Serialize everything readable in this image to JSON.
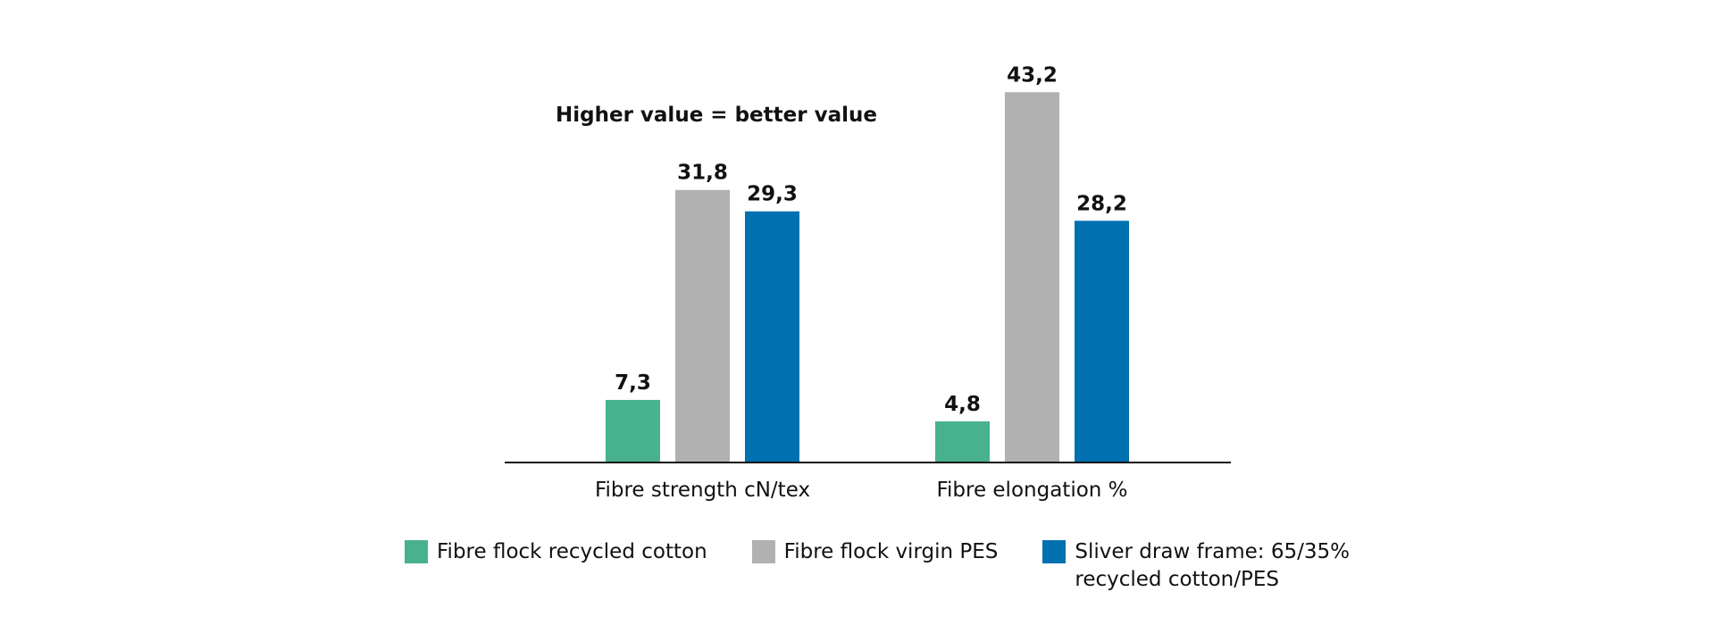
{
  "chart_data": {
    "type": "bar",
    "annotation": "Higher value = better value",
    "categories": [
      "Fibre strength cN/tex",
      "Fibre elongation %"
    ],
    "series": [
      {
        "name": "Fibre flock recycled cotton",
        "color": "#47b28d",
        "values": [
          7.3,
          4.8
        ],
        "labels": [
          "7,3",
          "4,8"
        ]
      },
      {
        "name": "Fibre flock virgin PES",
        "color": "#b1b1b1",
        "values": [
          31.8,
          43.2
        ],
        "labels": [
          "31,8",
          "43,2"
        ]
      },
      {
        "name": "Sliver draw frame: 65/35% recycled cotton/PES",
        "color": "#0070b0",
        "values": [
          29.3,
          28.2
        ],
        "labels": [
          "29,3",
          "28,2"
        ]
      }
    ],
    "xlabel": "",
    "ylabel": "",
    "ylim": [
      0,
      45
    ],
    "grid": false,
    "y_axis_visible": false,
    "legend_position": "bottom"
  }
}
